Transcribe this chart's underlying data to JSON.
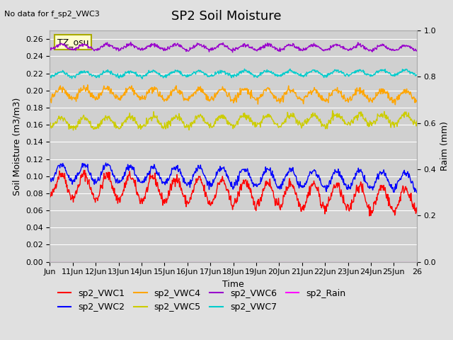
{
  "title": "SP2 Soil Moisture",
  "no_data_text": "No data for f_sp2_VWC3",
  "tz_label": "TZ_osu",
  "xlabel": "Time",
  "ylabel_left": "Soil Moisture (m3/m3)",
  "ylabel_right": "Raim (mm)",
  "ylim_left": [
    0.0,
    0.27
  ],
  "ylim_right": [
    0.0,
    1.0
  ],
  "n_days": 16,
  "xtick_positions": [
    0,
    1,
    2,
    3,
    4,
    5,
    6,
    7,
    8,
    9,
    10,
    11,
    12,
    13,
    14,
    15,
    16
  ],
  "xtick_labels": [
    "Jun",
    "11Jun",
    "12Jun",
    "13Jun",
    "14Jun",
    "15Jun",
    "16Jun",
    "17Jun",
    "18Jun",
    "19Jun",
    "20Jun",
    "21Jun",
    "22Jun",
    "23Jun",
    "24Jun",
    "25Jun",
    "26"
  ],
  "yticks_left": [
    0.0,
    0.02,
    0.04,
    0.06,
    0.08,
    0.1,
    0.12,
    0.14,
    0.16,
    0.18,
    0.2,
    0.22,
    0.24,
    0.26
  ],
  "yticks_right": [
    0.0,
    0.2,
    0.4,
    0.6,
    0.8,
    1.0
  ],
  "series": {
    "sp2_VWC1": {
      "color": "#ff0000",
      "base": 0.09,
      "amplitude": 0.014,
      "trend": -0.018,
      "noise": 0.003
    },
    "sp2_VWC2": {
      "color": "#0000ff",
      "base": 0.104,
      "amplitude": 0.01,
      "trend": -0.01,
      "noise": 0.002
    },
    "sp2_VWC4": {
      "color": "#ffa500",
      "base": 0.197,
      "amplitude": 0.006,
      "trend": -0.003,
      "noise": 0.002
    },
    "sp2_VWC5": {
      "color": "#cccc00",
      "base": 0.162,
      "amplitude": 0.006,
      "trend": 0.005,
      "noise": 0.002
    },
    "sp2_VWC6": {
      "color": "#9900cc",
      "base": 0.251,
      "amplitude": 0.003,
      "trend": -0.001,
      "noise": 0.001
    },
    "sp2_VWC7": {
      "color": "#00cccc",
      "base": 0.219,
      "amplitude": 0.003,
      "trend": 0.002,
      "noise": 0.001
    },
    "sp2_Rain": {
      "color": "#ff00ff",
      "base": 0.0,
      "amplitude": 0.0,
      "trend": 0.0,
      "noise": 0.0
    }
  },
  "legend_order": [
    "sp2_VWC1",
    "sp2_VWC2",
    "sp2_VWC4",
    "sp2_VWC5",
    "sp2_VWC6",
    "sp2_VWC7",
    "sp2_Rain"
  ],
  "bg_color": "#e0e0e0",
  "plot_bg_color": "#d0d0d0",
  "grid_color": "#ffffff",
  "title_fontsize": 13,
  "label_fontsize": 9,
  "tick_fontsize": 8,
  "legend_fontsize": 9
}
